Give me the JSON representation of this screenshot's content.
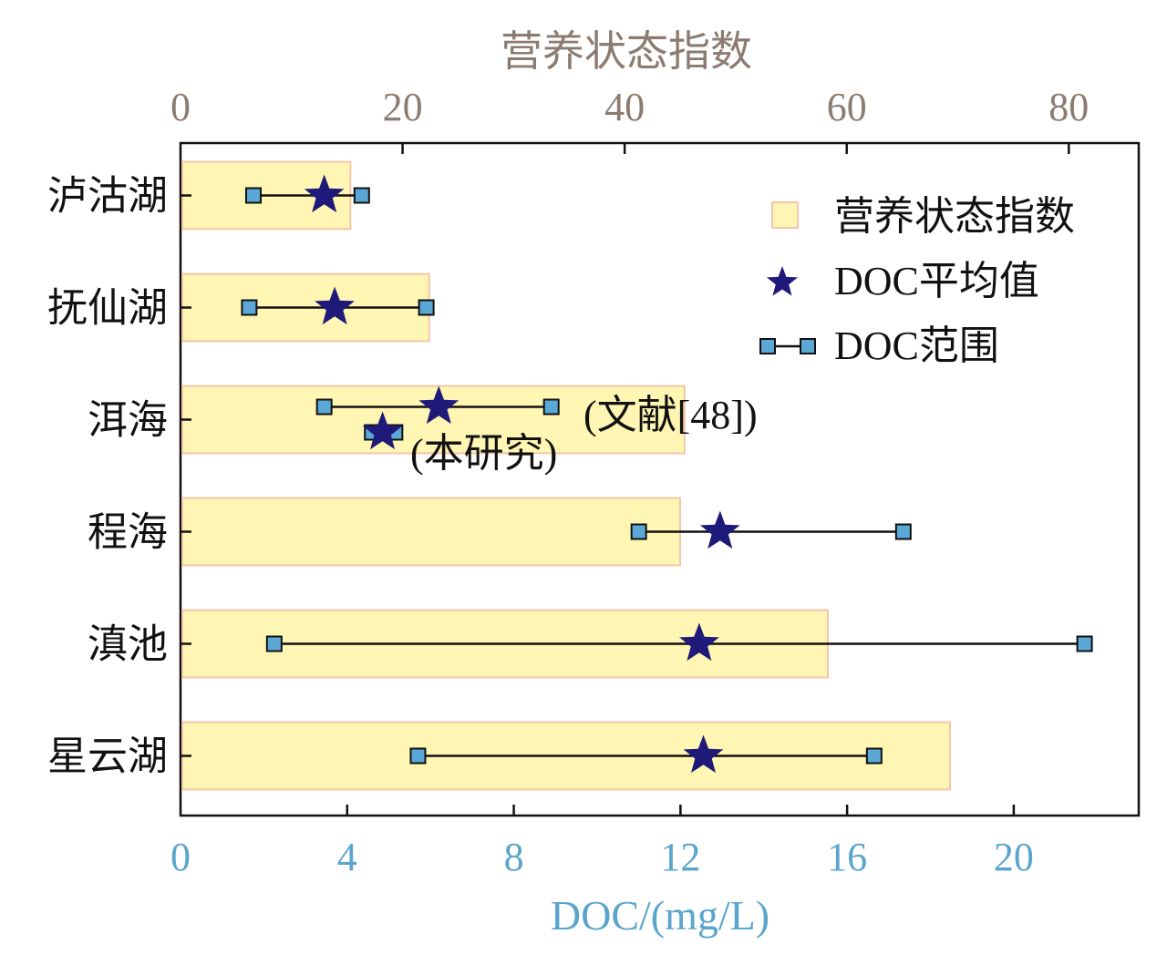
{
  "chart_data": {
    "type": "bar",
    "orientation": "horizontal",
    "categories": [
      "泸沽湖",
      "抚仙湖",
      "洱海",
      "程海",
      "滇池",
      "星云湖"
    ],
    "top_axis": {
      "label": "营养状态指数",
      "ticks": [
        "0",
        "20",
        "40",
        "60",
        "80"
      ],
      "range": [
        0,
        86.3
      ],
      "color": "#8c7b70"
    },
    "bottom_axis": {
      "label": "DOC/(mg/L)",
      "ticks": [
        "0",
        "4",
        "8",
        "12",
        "16",
        "20"
      ],
      "range": [
        0,
        23
      ],
      "color": "#5aa5cc"
    },
    "series": [
      {
        "name": "营养状态指数",
        "axis": "top",
        "values": [
          15.3,
          22.4,
          45.4,
          45.0,
          58.3,
          69.3
        ],
        "color": "#fff6b3",
        "edge_color": "#f5c6a8"
      },
      {
        "name": "DOC平均值",
        "axis": "bottom",
        "values": [
          3.45,
          3.7,
          6.2,
          12.95,
          12.45,
          12.55
        ],
        "color": "#1f1a7a"
      },
      {
        "name": "DOC范围",
        "axis": "bottom",
        "min": [
          1.75,
          1.65,
          3.45,
          11.0,
          2.25,
          5.7
        ],
        "max": [
          4.35,
          5.9,
          8.9,
          17.35,
          21.7,
          16.65
        ],
        "color": "#5ba7d6"
      }
    ],
    "extra_points": [
      {
        "category": "洱海",
        "mean": 4.85,
        "min": 4.6,
        "max": 5.15,
        "label": "(本研究)"
      }
    ],
    "annotations": [
      {
        "text": "(文献[48])",
        "category": "洱海"
      },
      {
        "text": "(本研究)",
        "category": "洱海"
      }
    ],
    "legend": {
      "placement": "top-right",
      "items": [
        "营养状态指数",
        "DOC平均值",
        "DOC范围"
      ]
    }
  }
}
